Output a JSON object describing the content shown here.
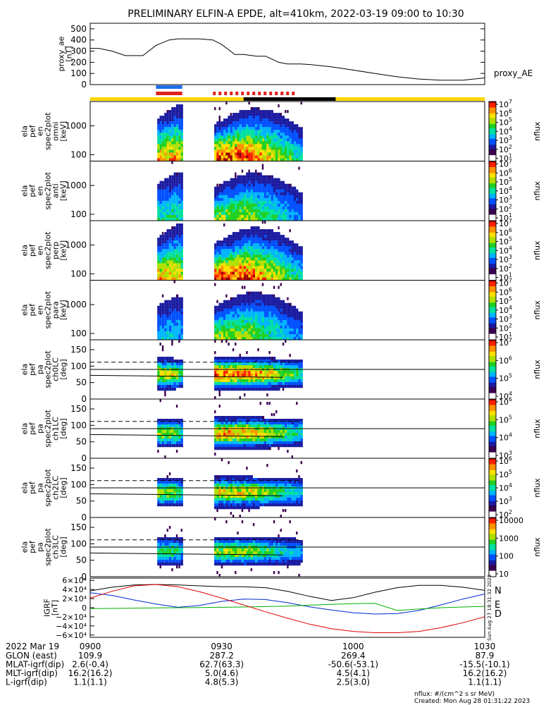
{
  "title": "PRELIMINARY ELFIN-A EPDE, alt=410km, 2022-03-19 09:00 to 10:30",
  "chart_data": {
    "type": "heatmap",
    "time_ticks": [
      "0900",
      "0930",
      "1000",
      "1030"
    ],
    "time_range_min": [
      0,
      90
    ],
    "proxy_ae": {
      "ylabel": [
        "proxy_ae",
        "[nT]"
      ],
      "yticks": [
        "500",
        "400",
        "300",
        "200",
        "100",
        "0"
      ],
      "ytick_values": [
        500,
        400,
        300,
        200,
        100,
        0
      ],
      "ylim": [
        0,
        550
      ],
      "series_name": "proxy_AE",
      "t_min": [
        0,
        2,
        5,
        8,
        10,
        12,
        15,
        18,
        20,
        22,
        25,
        28,
        30,
        33,
        35,
        38,
        40,
        43,
        45,
        48,
        50,
        55,
        60,
        65,
        70,
        75,
        80,
        85,
        90
      ],
      "values": [
        325,
        325,
        300,
        260,
        260,
        260,
        350,
        400,
        410,
        410,
        410,
        400,
        360,
        270,
        270,
        255,
        255,
        200,
        185,
        185,
        180,
        160,
        130,
        100,
        70,
        50,
        40,
        40,
        60
      ]
    },
    "status_bars": {
      "colors": {
        "blue": "#1e6fe8",
        "red": "#e0201a",
        "yellow": "#ffd700",
        "black": "#000000"
      },
      "blue_min": [
        15,
        21
      ],
      "red_min": [
        15,
        21
      ],
      "red_dashed_min": [
        28,
        47
      ],
      "yellow_min": [
        0,
        90
      ],
      "black_min": [
        35,
        56
      ]
    },
    "spectrograms": [
      {
        "ylabel": [
          "ela",
          "pef",
          "en",
          "spec2plot",
          "omni",
          "[keV]"
        ],
        "yticks": [
          "1000",
          "100"
        ],
        "ytick_values": [
          1000,
          100
        ],
        "ylim_log": [
          60,
          7000
        ],
        "cbar_ticks": [
          "10^7",
          "10^6",
          "10^5",
          "10^4",
          "10^3",
          "10^2",
          "10^1"
        ],
        "cbar_label": "nflux"
      },
      {
        "ylabel": [
          "ela",
          "pef",
          "en",
          "spec2plot",
          "anti",
          "[keV]"
        ],
        "yticks": [
          "1000",
          "100"
        ],
        "ytick_values": [
          1000,
          100
        ],
        "ylim_log": [
          60,
          7000
        ],
        "cbar_ticks": [
          "10^7",
          "10^6",
          "10^5",
          "10^4",
          "10^3",
          "10^2",
          "10^1"
        ],
        "cbar_label": "nflux"
      },
      {
        "ylabel": [
          "ela",
          "pef",
          "en",
          "spec2plot",
          "perp",
          "[keV]"
        ],
        "yticks": [
          "1000",
          "100"
        ],
        "ytick_values": [
          1000,
          100
        ],
        "ylim_log": [
          60,
          7000
        ],
        "cbar_ticks": [
          "10^7",
          "10^6",
          "10^5",
          "10^4",
          "10^3",
          "10^2",
          "10^1"
        ],
        "cbar_label": "nflux"
      },
      {
        "ylabel": [
          "ela",
          "pef",
          "en",
          "spec2plot",
          "para",
          "[keV]"
        ],
        "yticks": [
          "1000",
          "100"
        ],
        "ytick_values": [
          1000,
          100
        ],
        "ylim_log": [
          60,
          7000
        ],
        "cbar_ticks": [
          "10^7",
          "10^6",
          "10^5",
          "10^4",
          "10^3",
          "10^2",
          "10^1"
        ],
        "cbar_label": "nflux"
      }
    ],
    "pitch_angle_spectra": [
      {
        "ylabel": [
          "ela",
          "pef",
          "pa",
          "spec2plot",
          "ch0LC",
          "[deg]"
        ],
        "yticks": [
          "150",
          "100",
          "50",
          "0"
        ],
        "ytick_values": [
          150,
          100,
          50,
          0
        ],
        "ylim": [
          0,
          180
        ],
        "cbar_ticks": [
          "10^7",
          "10^6",
          "10^5",
          "10^4"
        ],
        "cbar_label": "nflux"
      },
      {
        "ylabel": [
          "ela",
          "pef",
          "pa",
          "spec2plot",
          "ch1LC",
          "[deg]"
        ],
        "yticks": [
          "150",
          "100",
          "50",
          "0"
        ],
        "ytick_values": [
          150,
          100,
          50,
          0
        ],
        "ylim": [
          0,
          180
        ],
        "cbar_ticks": [
          "10^6",
          "10^5",
          "10^4",
          "10^3"
        ],
        "cbar_label": "nflux"
      },
      {
        "ylabel": [
          "ela",
          "pef",
          "pa",
          "spec2plot",
          "ch2LC",
          "[deg]"
        ],
        "yticks": [
          "150",
          "100",
          "50",
          "0"
        ],
        "ytick_values": [
          150,
          100,
          50,
          0
        ],
        "ylim": [
          0,
          180
        ],
        "cbar_ticks": [
          "10^6",
          "10^5",
          "10^4",
          "10^3",
          "10^2"
        ],
        "cbar_label": "nflux"
      },
      {
        "ylabel": [
          "ela",
          "pef",
          "pa",
          "spec2plot",
          "ch3LC",
          "[deg]"
        ],
        "yticks": [
          "150",
          "100",
          "50",
          "0"
        ],
        "ytick_values": [
          150,
          100,
          50,
          0
        ],
        "ylim": [
          0,
          180
        ],
        "cbar_ticks": [
          "10000",
          "1000",
          "100",
          "10"
        ],
        "cbar_label": "nflux"
      }
    ],
    "colors": {
      "colorbar": [
        "#ffffff",
        "#3a0050",
        "#1a1aa0",
        "#0050ff",
        "#00b4ff",
        "#00e0a0",
        "#20d020",
        "#b0e000",
        "#ffe000",
        "#ff9000",
        "#ff2000",
        "#a00000"
      ]
    },
    "igrf": {
      "ylabel": [
        "IGRF",
        "[nT]"
      ],
      "yticks": [
        "6×10⁴",
        "4×10⁴",
        "2×10⁴",
        "0",
        "−2×10⁴",
        "−4×10⁴",
        "−6×10⁴"
      ],
      "ytick_values": [
        60000,
        40000,
        20000,
        0,
        -20000,
        -40000,
        -60000
      ],
      "ylim": [
        -65000,
        65000
      ],
      "legend": [
        "N",
        "E",
        "D"
      ],
      "legend_colors": {
        "N": "#0028d0",
        "E": "#00b000",
        "D": "#e00000"
      },
      "side_label": "Sun Aug 27 18:31:32 2023",
      "t_min": [
        0,
        5,
        10,
        15,
        20,
        25,
        30,
        35,
        40,
        45,
        50,
        55,
        60,
        65,
        70,
        75,
        80,
        85,
        90
      ],
      "total": [
        37000,
        45000,
        50000,
        51000,
        50000,
        48000,
        46000,
        46000,
        44000,
        36000,
        25000,
        16000,
        22000,
        34000,
        44000,
        49000,
        49000,
        45000,
        38000
      ],
      "north": [
        33000,
        27000,
        17000,
        8000,
        1000,
        5000,
        14000,
        19000,
        18000,
        11000,
        2000,
        -5000,
        -11000,
        -14000,
        -13000,
        -6000,
        6000,
        19000,
        30000
      ],
      "east": [
        -2000,
        -1500,
        -1000,
        -500,
        0,
        500,
        1000,
        1500,
        2500,
        3500,
        5500,
        7500,
        9000,
        9500,
        -6000,
        -3000,
        0,
        1500,
        3000
      ],
      "down": [
        21000,
        36000,
        48000,
        51000,
        46000,
        35000,
        21000,
        6000,
        -9000,
        -23000,
        -36000,
        -46000,
        -52000,
        -55000,
        -55000,
        -52000,
        -44000,
        -33000,
        -20000
      ]
    },
    "ephemeris": {
      "date": "2022 Mar 19",
      "rows": [
        {
          "label": "GLON (east)",
          "values": [
            "109.9",
            "287.2",
            "269.4",
            "87.9"
          ]
        },
        {
          "label": "MLAT-igrf(dip)",
          "values": [
            "2.6(-0.4)",
            "62.7(63.3)",
            "-50.6(-53.1)",
            "-15.5(-10.1)"
          ]
        },
        {
          "label": "MLT-igrf(dip)",
          "values": [
            "16.2(16.2)",
            "5.0(4.6)",
            "4.5(4.1)",
            "16.2(16.2)"
          ]
        },
        {
          "label": "L-igrf(dip)",
          "values": [
            "1.1(1.1)",
            "4.8(5.3)",
            "2.5(3.0)",
            "1.1(1.1)"
          ]
        }
      ]
    },
    "footer": {
      "units": "nflux: #/(cm^2 s sr MeV)",
      "created": "Created: Mon Aug 28 01:31:22 2023"
    }
  }
}
